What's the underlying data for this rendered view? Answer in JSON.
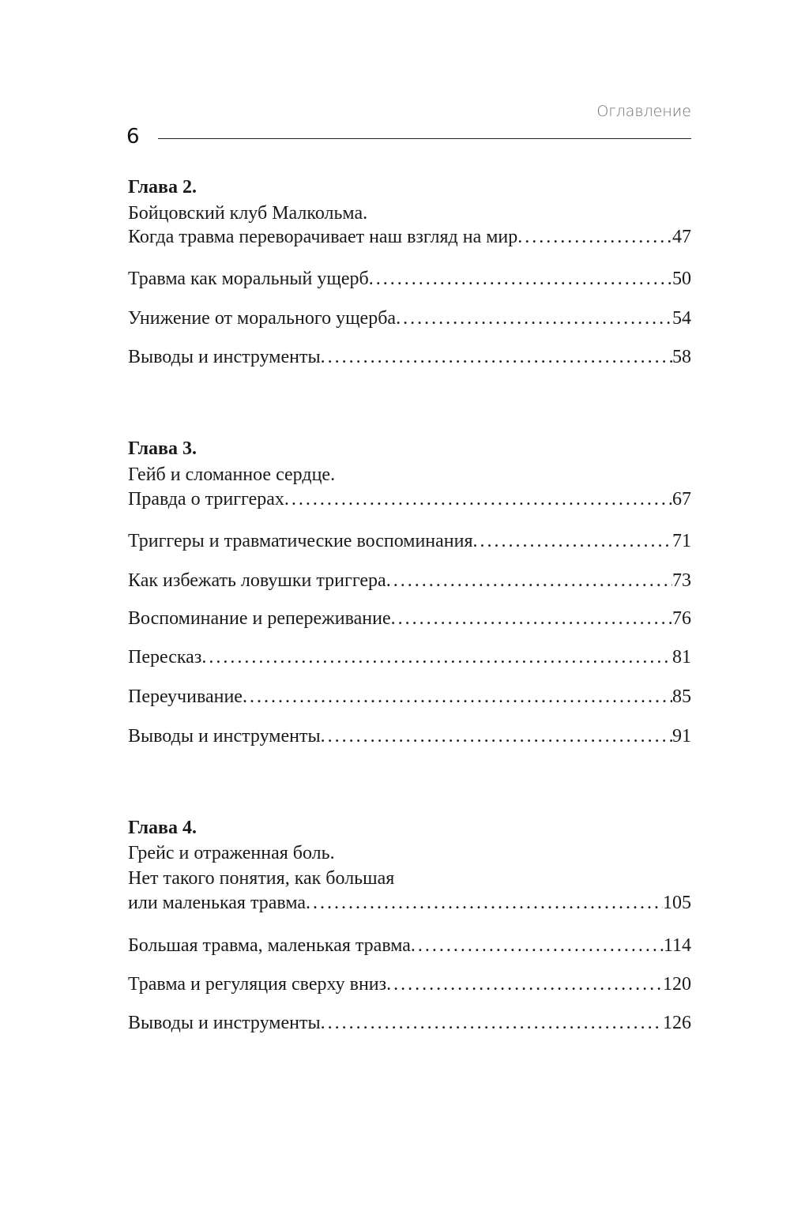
{
  "header": {
    "section_title": "Оглавление",
    "page_number": "6"
  },
  "chapters": [
    {
      "heading": "Глава 2.",
      "title_lines": [
        "Бойцовский клуб Малкольма."
      ],
      "title_last": "Когда травма переворачивает наш взгляд на мир",
      "page": "47",
      "entries": [
        {
          "title": "Травма как моральный ущерб",
          "page": "50"
        },
        {
          "title": "Унижение от морального ущерба",
          "page": "54"
        },
        {
          "title": "Выводы и инструменты",
          "page": "58"
        }
      ]
    },
    {
      "heading": "Глава 3.",
      "title_lines": [
        "Гейб и сломанное сердце."
      ],
      "title_last": "Правда о триггерах",
      "page": "67",
      "entries": [
        {
          "title": "Триггеры и травматические воспоминания",
          "page": "71"
        },
        {
          "title": "Как избежать ловушки триггера",
          "page": "73"
        },
        {
          "title": "Воспоминание и репереживание",
          "page": "76"
        },
        {
          "title": "Пересказ",
          "page": "81"
        },
        {
          "title": "Переучивание",
          "page": "85"
        },
        {
          "title": "Выводы и инструменты",
          "page": "91"
        }
      ]
    },
    {
      "heading": "Глава 4.",
      "title_lines": [
        "Грейс и отраженная боль.",
        "Нет такого понятия, как большая"
      ],
      "title_last": "или маленькая травма",
      "page": "105",
      "entries": [
        {
          "title": "Большая травма, маленькая травма",
          "page": "114"
        },
        {
          "title": "Травма и регуляция сверху вниз",
          "page": "120"
        },
        {
          "title": "Выводы и инструменты",
          "page": "126"
        }
      ]
    }
  ]
}
